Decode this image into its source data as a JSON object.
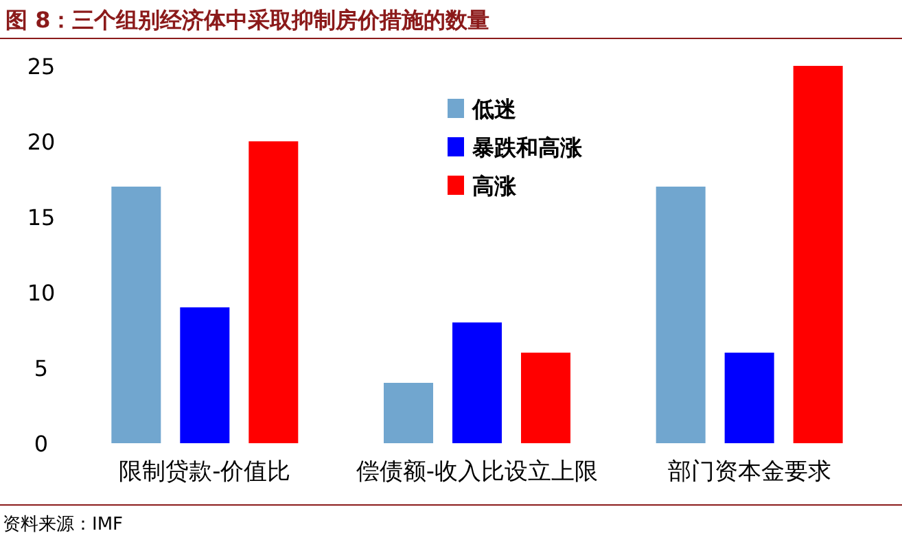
{
  "chart_data": {
    "type": "bar",
    "title": "图 8：三个组别经济体中采取抑制房价措施的数量",
    "categories": [
      "限制贷款-价值比",
      "偿债额-收入比设立上限",
      "部门资本金要求"
    ],
    "series": [
      {
        "name": "低迷",
        "color": "#71a6cf",
        "values": [
          17,
          4,
          17
        ]
      },
      {
        "name": "暴跌和高涨",
        "color": "#0000ff",
        "values": [
          9,
          8,
          6
        ]
      },
      {
        "name": "高涨",
        "color": "#ff0000",
        "values": [
          20,
          6,
          25
        ]
      }
    ],
    "ylim": [
      0,
      25
    ],
    "yticks": [
      0,
      5,
      10,
      15,
      20,
      25
    ],
    "legend": "top",
    "grid": false,
    "annotations": [
      "资料来源：IMF"
    ]
  }
}
